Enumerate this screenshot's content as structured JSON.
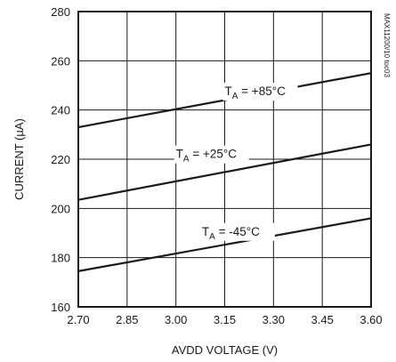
{
  "chart_data": {
    "type": "line",
    "xlabel": "AVDD VOLTAGE (V)",
    "ylabel": "CURRENT (µA)",
    "xlim": [
      2.7,
      3.6
    ],
    "ylim": [
      160,
      280
    ],
    "x_ticks": [
      "2.70",
      "2.85",
      "3.00",
      "3.15",
      "3.30",
      "3.45",
      "3.60"
    ],
    "y_ticks": [
      "160",
      "180",
      "200",
      "220",
      "240",
      "260",
      "280"
    ],
    "grid": true,
    "figure_code": "MAX11200/10 toc03",
    "series": [
      {
        "name": "T_A = +85°C",
        "label_main": "T",
        "label_sub": "A",
        "label_rest": " = +85°C",
        "x": [
          2.7,
          3.6
        ],
        "y": [
          233,
          255
        ],
        "label_at": [
          3.15,
          246
        ]
      },
      {
        "name": "T_A = +25°C",
        "label_main": "T",
        "label_sub": "A",
        "label_rest": " = +25°C",
        "x": [
          2.7,
          3.6
        ],
        "y": [
          203.5,
          226
        ],
        "label_at": [
          3.0,
          220.5
        ]
      },
      {
        "name": "T_A = -45°C",
        "label_main": "T",
        "label_sub": "A",
        "label_rest": " = -45°C",
        "x": [
          2.7,
          3.6
        ],
        "y": [
          174.5,
          196
        ],
        "label_at": [
          3.08,
          189
        ]
      }
    ]
  }
}
